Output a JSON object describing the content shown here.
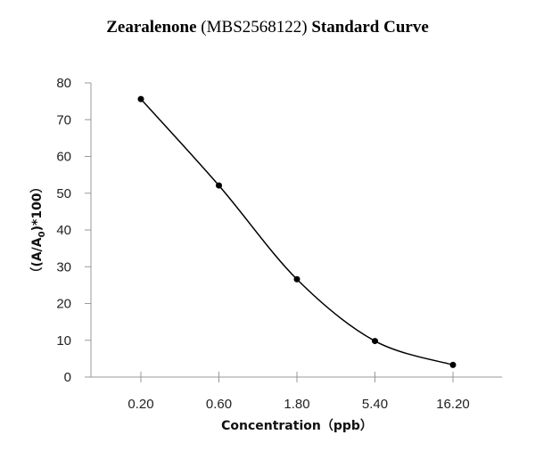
{
  "chart_data": {
    "type": "line",
    "title_parts": [
      "Zearalenone",
      " (MBS2568122) ",
      "Standard Curve"
    ],
    "xlabel": "Concentration（ppb）",
    "ylabel": "（(A/A0)*100）",
    "categories": [
      "0.20",
      "0.60",
      "1.80",
      "5.40",
      "16.20"
    ],
    "values": [
      75.6,
      52.1,
      26.6,
      9.8,
      3.3
    ],
    "ylim": [
      0,
      80
    ],
    "yticks": [
      0,
      10,
      20,
      30,
      40,
      50,
      60,
      70,
      80
    ],
    "grid": false,
    "smooth": true,
    "line_color": "#000000",
    "axis_color": "#999999"
  }
}
